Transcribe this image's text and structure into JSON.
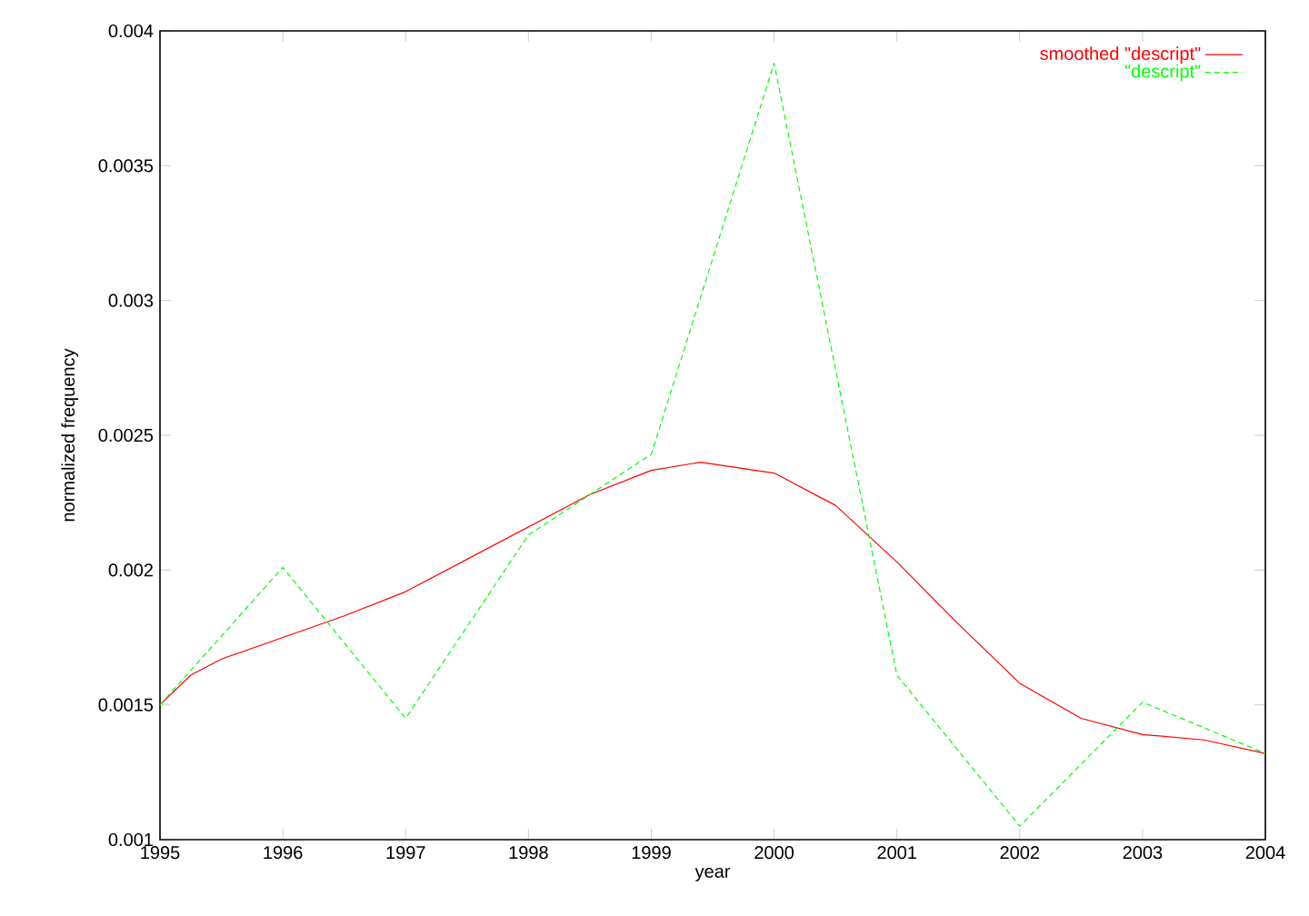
{
  "chart_data": {
    "type": "line",
    "xlabel": "year",
    "ylabel": "normalized frequency",
    "xlim": [
      1995,
      2004
    ],
    "xticks": [
      1995,
      1996,
      1997,
      1998,
      1999,
      2000,
      2001,
      2002,
      2003,
      2004
    ],
    "ylim": [
      0.001,
      0.004
    ],
    "yticks": [
      0.001,
      0.0015,
      0.002,
      0.0025,
      0.003,
      0.0035,
      0.004
    ],
    "legend": "top right",
    "grid": false,
    "series": [
      {
        "name": "smoothed \"descript\"",
        "color": "#ff0000",
        "line_style": "solid",
        "x": [
          1995,
          1995.25,
          1995.5,
          1996,
          1996.5,
          1997,
          1997.5,
          1998,
          1998.5,
          1999,
          1999.4,
          2000,
          2000.5,
          2001,
          2001.5,
          2002,
          2002.5,
          2003,
          2003.5,
          2004
        ],
        "values": [
          0.0015,
          0.00161,
          0.00167,
          0.00175,
          0.00183,
          0.00192,
          0.00204,
          0.00216,
          0.00228,
          0.00237,
          0.0024,
          0.00236,
          0.00224,
          0.00203,
          0.0018,
          0.00158,
          0.00145,
          0.00139,
          0.00137,
          0.00132
        ]
      },
      {
        "name": "\"descript\"",
        "color": "#00ff00",
        "line_style": "dashed",
        "x": [
          1995,
          1996,
          1997,
          1998,
          1999,
          2000,
          2001,
          2002,
          2003,
          2004
        ],
        "values": [
          0.0015,
          0.00201,
          0.00145,
          0.00213,
          0.00243,
          0.00388,
          0.00161,
          0.00105,
          0.00151,
          0.00132
        ]
      }
    ]
  }
}
